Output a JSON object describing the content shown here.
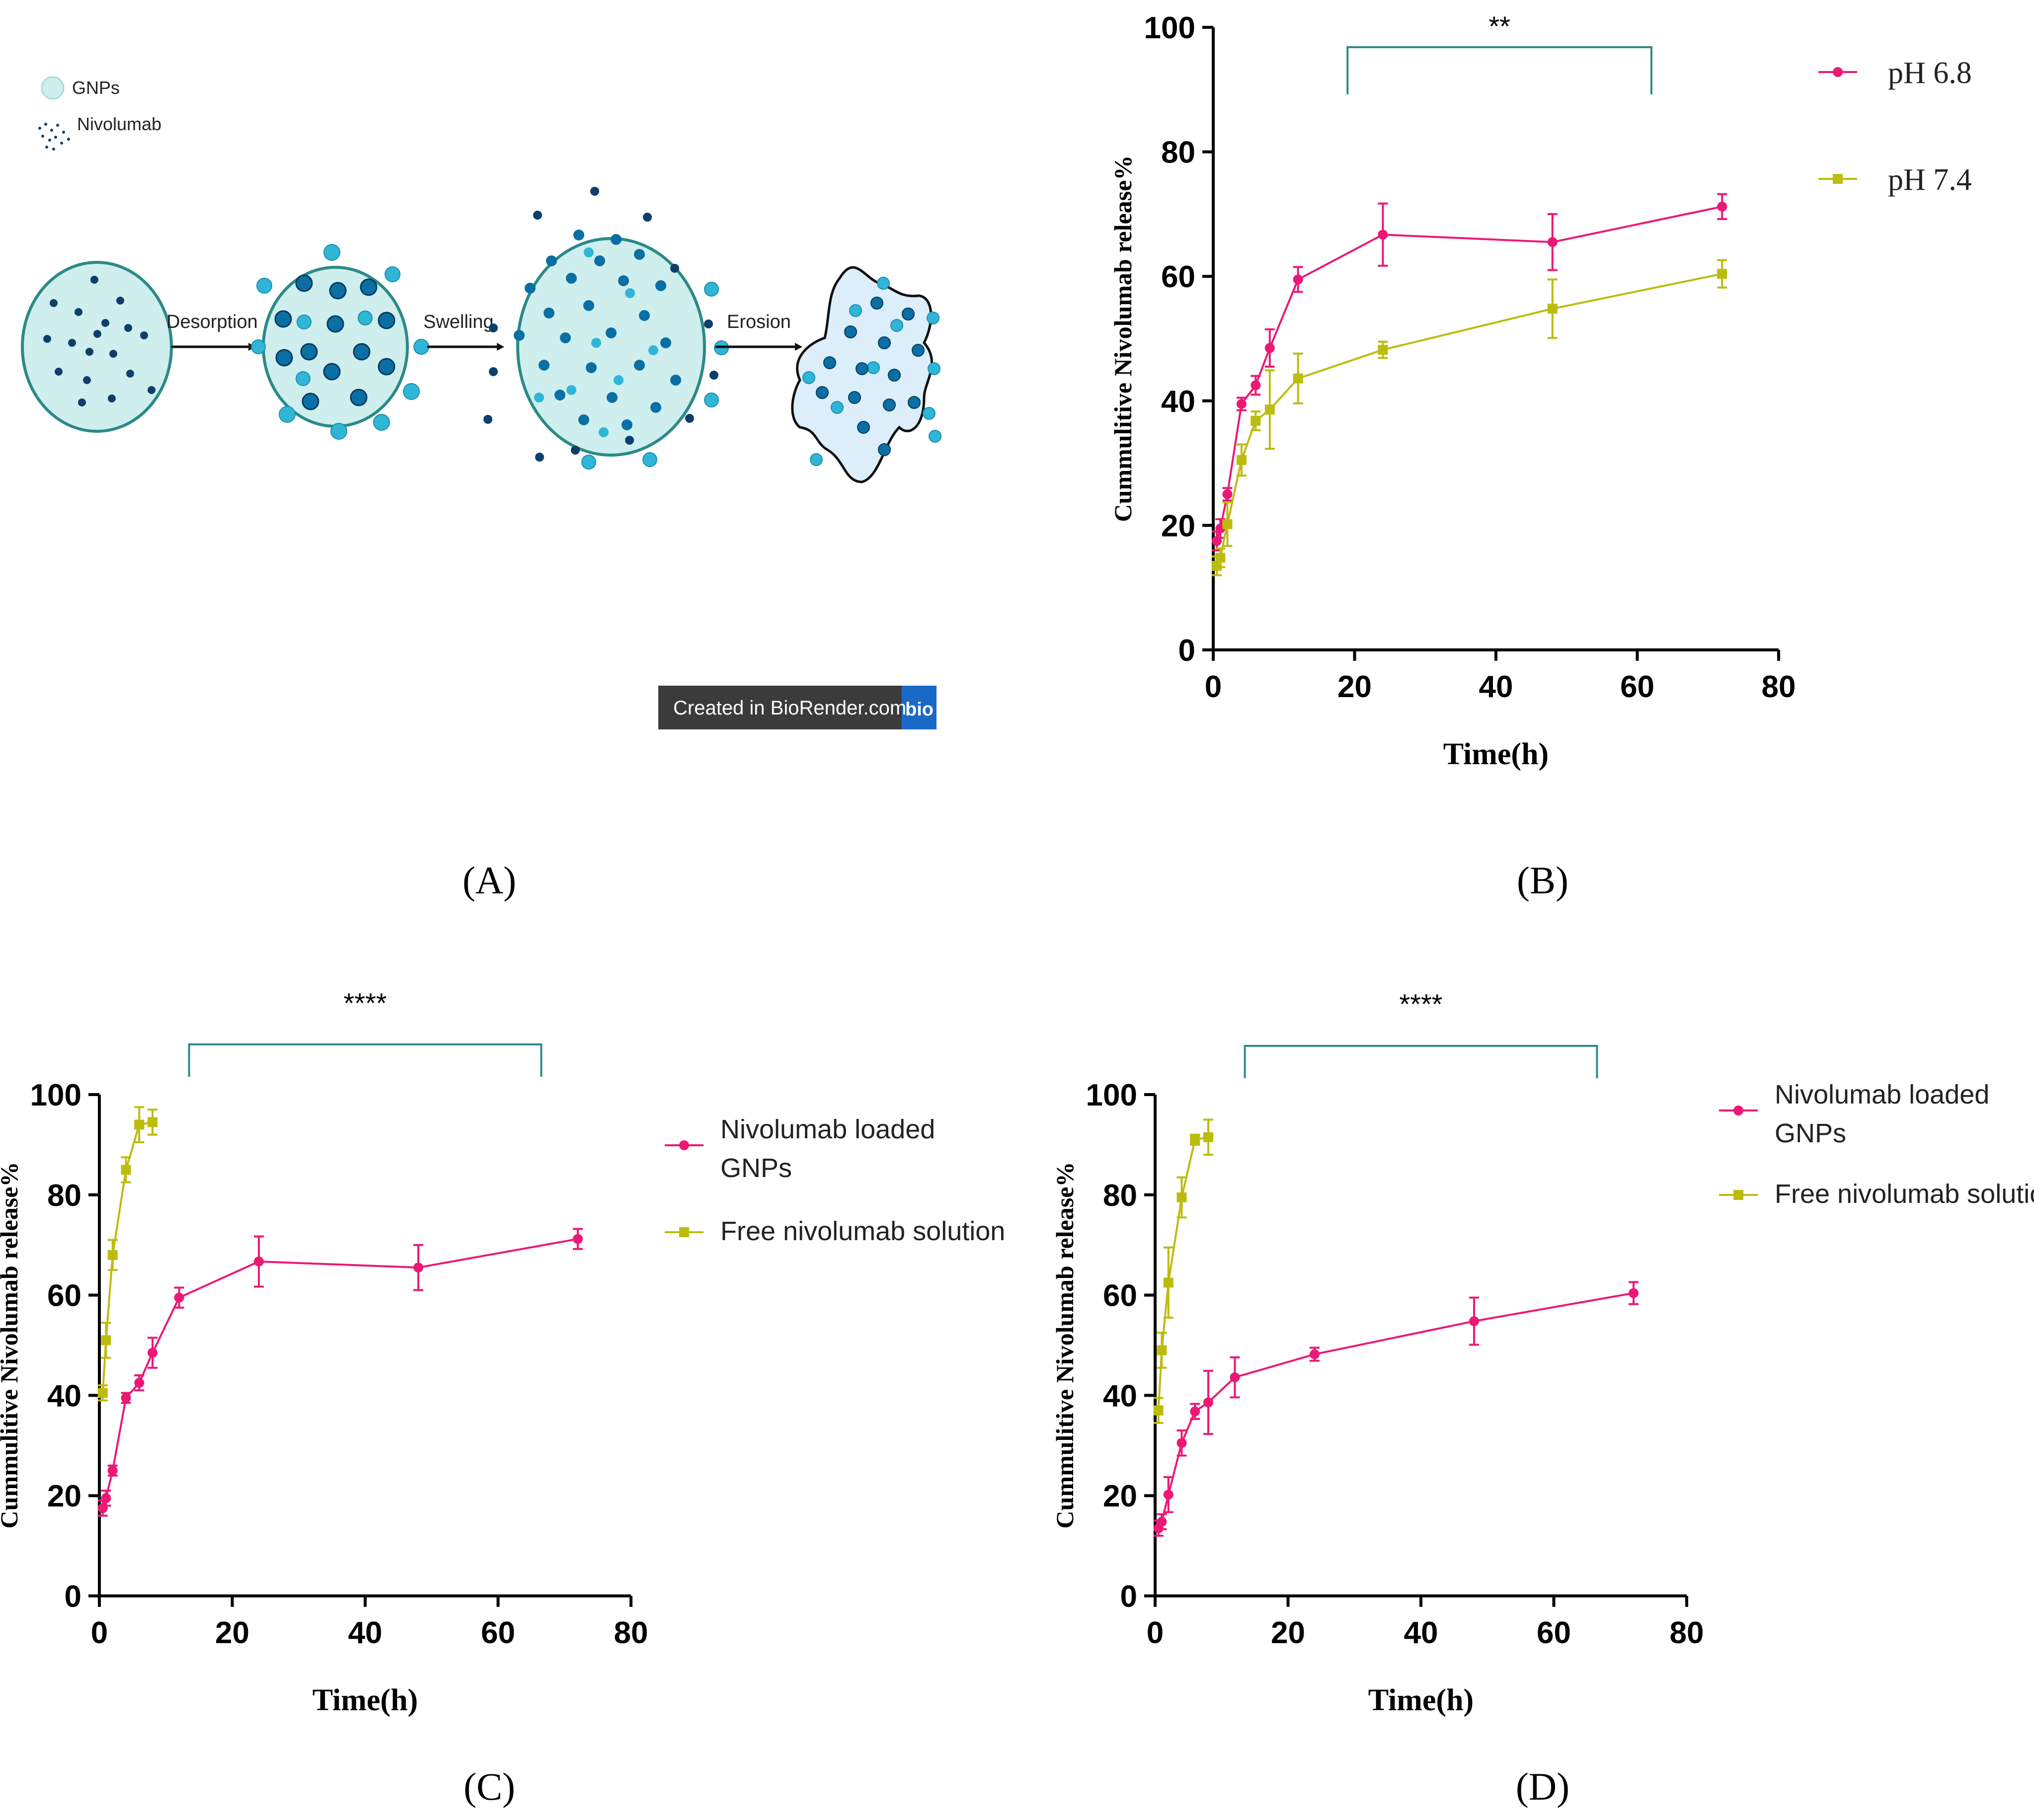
{
  "colors": {
    "ph68": "#ec1876",
    "ph74": "#bcbc0e",
    "teal": "#2b8a86",
    "bead": "#2fb6d6",
    "core": "#0e3f6c",
    "fill": "#cfeeee",
    "fill2": "#dbeef9"
  },
  "diagram": {
    "legend_gnps": "GNPs",
    "legend_nivolumab": "Nivolumab",
    "step1": "Desorption",
    "step2": "Swelling",
    "step3": "Erosion",
    "badge_text": "Created in BioRender.com",
    "badge_logo": "bio"
  },
  "captions": {
    "a": "(A)",
    "b": "(B)",
    "c": "(C)",
    "d": "(D)"
  },
  "chart_data": [
    {
      "panel": "B",
      "type": "line",
      "title": "",
      "xlabel": "Time(h)",
      "ylabel": "Cummulitive Nivolumab release%",
      "xlim": [
        0,
        80
      ],
      "ylim": [
        0,
        100
      ],
      "xticks": [
        0,
        20,
        40,
        60,
        80
      ],
      "yticks": [
        0,
        20,
        40,
        60,
        80,
        100
      ],
      "significance": {
        "label": "**",
        "x_from": 19,
        "x_to": 62
      },
      "series": [
        {
          "name": "pH 6.8",
          "marker": "circle",
          "color": "#ec1876",
          "x": [
            0.5,
            1,
            2,
            4,
            6,
            8,
            12,
            24,
            48,
            72
          ],
          "y": [
            17.5,
            19.5,
            25,
            39.5,
            42.5,
            48.5,
            59.5,
            66.7,
            65.5,
            71.2
          ],
          "err": [
            1.5,
            1.5,
            1,
            1,
            1.5,
            3,
            2,
            5,
            4.5,
            2
          ]
        },
        {
          "name": "pH 7.4",
          "marker": "square",
          "color": "#bcbc0e",
          "x": [
            0.5,
            1,
            2,
            4,
            6,
            8,
            12,
            24,
            48,
            72
          ],
          "y": [
            13.5,
            14.8,
            20.2,
            30.5,
            36.8,
            38.6,
            43.6,
            48.2,
            54.8,
            60.4
          ],
          "err": [
            1.5,
            1.5,
            3.5,
            2.5,
            1.5,
            6.3,
            4,
            1.3,
            4.7,
            2.2
          ]
        }
      ]
    },
    {
      "panel": "C",
      "type": "line",
      "title": "",
      "xlabel": "Time(h)",
      "ylabel": "Cummulitive Nivolumab release%",
      "xlim": [
        0,
        80
      ],
      "ylim": [
        0,
        100
      ],
      "xticks": [
        0,
        20,
        40,
        60,
        80
      ],
      "yticks": [
        0,
        20,
        40,
        60,
        80,
        100
      ],
      "significance": {
        "label": "****",
        "x_from": 13.5,
        "x_to": 66.5
      },
      "series": [
        {
          "name": "Nivolumab loaded GNPs",
          "marker": "circle",
          "color": "#ec1876",
          "legend_lines": [
            "Nivolumab loaded",
            "GNPs"
          ],
          "x": [
            0.5,
            1,
            2,
            4,
            6,
            8,
            12,
            24,
            48,
            72
          ],
          "y": [
            17.5,
            19.5,
            25,
            39.5,
            42.5,
            48.5,
            59.5,
            66.7,
            65.5,
            71.2
          ],
          "err": [
            1.5,
            1.5,
            1,
            1,
            1.5,
            3,
            2,
            5,
            4.5,
            2
          ]
        },
        {
          "name": "Free nivolumab solution",
          "marker": "square",
          "color": "#bcbc0e",
          "legend_lines": [
            "Free nivolumab solution"
          ],
          "x": [
            0.5,
            1,
            2,
            4,
            6,
            8
          ],
          "y": [
            40.5,
            51,
            68,
            85,
            94,
            94.5
          ],
          "err": [
            1.5,
            3.5,
            3,
            2.5,
            3.5,
            2.5
          ]
        }
      ]
    },
    {
      "panel": "D",
      "type": "line",
      "title": "",
      "xlabel": "Time(h)",
      "ylabel": "Cummulitive Nivolumab release%",
      "xlim": [
        0,
        80
      ],
      "ylim": [
        0,
        100
      ],
      "xticks": [
        0,
        20,
        40,
        60,
        80
      ],
      "yticks": [
        0,
        20,
        40,
        60,
        80,
        100
      ],
      "significance": {
        "label": "****",
        "x_from": 13.5,
        "x_to": 66.5
      },
      "series": [
        {
          "name": "Nivolumab loaded GNPs",
          "marker": "circle",
          "color": "#ec1876",
          "legend_lines": [
            "Nivolumab loaded",
            "GNPs"
          ],
          "x": [
            0.5,
            1,
            2,
            4,
            6,
            8,
            12,
            24,
            48,
            72
          ],
          "y": [
            13.5,
            14.8,
            20.2,
            30.5,
            36.8,
            38.6,
            43.6,
            48.2,
            54.8,
            60.4
          ],
          "err": [
            1.5,
            1.5,
            3.5,
            2.5,
            1.5,
            6.3,
            4,
            1.3,
            4.7,
            2.2
          ]
        },
        {
          "name": "Free nivolumab solution",
          "marker": "square",
          "color": "#bcbc0e",
          "legend_lines": [
            "Free nivolumab solution"
          ],
          "x": [
            0.5,
            1,
            2,
            4,
            6,
            8
          ],
          "y": [
            37,
            49,
            62.5,
            79.5,
            91,
            91.5
          ],
          "err": [
            2.5,
            3.5,
            7,
            4,
            1,
            3.5
          ]
        }
      ]
    }
  ]
}
